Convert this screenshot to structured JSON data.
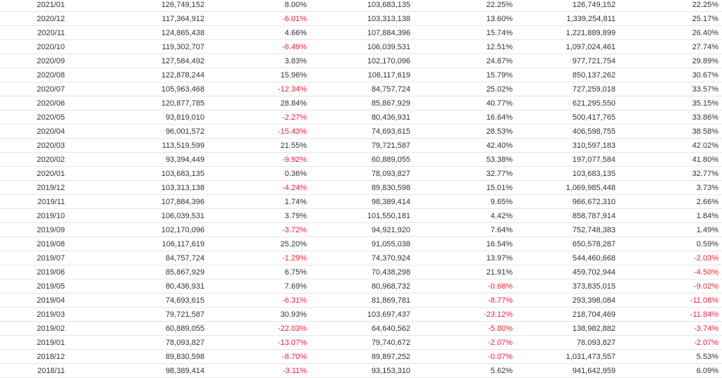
{
  "table": {
    "rows": [
      [
        "2021/01",
        "126,749,152",
        "8.00%",
        "103,683,135",
        "22.25%",
        "126,749,152",
        "22.25%"
      ],
      [
        "2020/12",
        "117,364,912",
        "-6.01%",
        "103,313,138",
        "13.60%",
        "1,339,254,811",
        "25.17%"
      ],
      [
        "2020/11",
        "124,865,438",
        "4.66%",
        "107,884,396",
        "15.74%",
        "1,221,889,899",
        "26.40%"
      ],
      [
        "2020/10",
        "119,302,707",
        "-6.49%",
        "106,039,531",
        "12.51%",
        "1,097,024,461",
        "27.74%"
      ],
      [
        "2020/09",
        "127,584,492",
        "3.83%",
        "102,170,096",
        "24.87%",
        "977,721,754",
        "29.89%"
      ],
      [
        "2020/08",
        "122,878,244",
        "15.96%",
        "106,117,619",
        "15.79%",
        "850,137,262",
        "30.67%"
      ],
      [
        "2020/07",
        "105,963,468",
        "-12.34%",
        "84,757,724",
        "25.02%",
        "727,259,018",
        "33.57%"
      ],
      [
        "2020/06",
        "120,877,785",
        "28.84%",
        "85,867,929",
        "40.77%",
        "621,295,550",
        "35.15%"
      ],
      [
        "2020/05",
        "93,819,010",
        "-2.27%",
        "80,436,931",
        "16.64%",
        "500,417,765",
        "33.86%"
      ],
      [
        "2020/04",
        "96,001,572",
        "-15.43%",
        "74,693,615",
        "28.53%",
        "406,598,755",
        "38.58%"
      ],
      [
        "2020/03",
        "113,519,599",
        "21.55%",
        "79,721,587",
        "42.40%",
        "310,597,183",
        "42.02%"
      ],
      [
        "2020/02",
        "93,394,449",
        "-9.92%",
        "60,889,055",
        "53.38%",
        "197,077,584",
        "41.80%"
      ],
      [
        "2020/01",
        "103,683,135",
        "0.36%",
        "78,093,827",
        "32.77%",
        "103,683,135",
        "32.77%"
      ],
      [
        "2019/12",
        "103,313,138",
        "-4.24%",
        "89,830,598",
        "15.01%",
        "1,069,985,448",
        "3.73%"
      ],
      [
        "2019/11",
        "107,884,396",
        "1.74%",
        "98,389,414",
        "9.65%",
        "966,672,310",
        "2.66%"
      ],
      [
        "2019/10",
        "106,039,531",
        "3.79%",
        "101,550,181",
        "4.42%",
        "858,787,914",
        "1.84%"
      ],
      [
        "2019/09",
        "102,170,096",
        "-3.72%",
        "94,921,920",
        "7.64%",
        "752,748,383",
        "1.49%"
      ],
      [
        "2019/08",
        "106,117,619",
        "25.20%",
        "91,055,038",
        "16.54%",
        "650,578,287",
        "0.59%"
      ],
      [
        "2019/07",
        "84,757,724",
        "-1.29%",
        "74,370,924",
        "13.97%",
        "544,460,668",
        "-2.03%"
      ],
      [
        "2019/06",
        "85,867,929",
        "6.75%",
        "70,438,298",
        "21.91%",
        "459,702,944",
        "-4.50%"
      ],
      [
        "2019/05",
        "80,436,931",
        "7.69%",
        "80,968,732",
        "-0.66%",
        "373,835,015",
        "-9.02%"
      ],
      [
        "2019/04",
        "74,693,615",
        "-6.31%",
        "81,869,781",
        "-8.77%",
        "293,398,084",
        "-11.08%"
      ],
      [
        "2019/03",
        "79,721,587",
        "30.93%",
        "103,697,437",
        "-23.12%",
        "218,704,469",
        "-11.84%"
      ],
      [
        "2019/02",
        "60,889,055",
        "-22.03%",
        "64,640,562",
        "-5.80%",
        "138,982,882",
        "-3.74%"
      ],
      [
        "2019/01",
        "78,093,827",
        "-13.07%",
        "79,740,672",
        "-2.07%",
        "78,093,827",
        "-2.07%"
      ],
      [
        "2018/12",
        "89,830,598",
        "-8.70%",
        "89,897,252",
        "-0.07%",
        "1,031,473,557",
        "5.53%"
      ],
      [
        "2018/11",
        "98,389,414",
        "-3.11%",
        "93,153,310",
        "5.62%",
        "941,642,959",
        "6.09%"
      ]
    ],
    "colors": {
      "negative": "#e8253f",
      "text": "#333333",
      "divider": "#e6e6e6"
    }
  }
}
